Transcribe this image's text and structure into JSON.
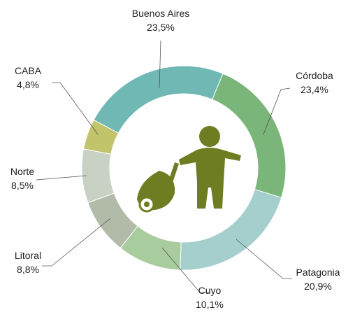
{
  "chart_data": {
    "type": "donut",
    "categories": [
      "Buenos Aires",
      "Córdoba",
      "Patagonia",
      "Cuyo",
      "Litoral",
      "Norte",
      "CABA"
    ],
    "values": [
      23.5,
      23.4,
      20.9,
      10.1,
      8.8,
      8.5,
      4.8
    ],
    "value_labels": [
      "23,5%",
      "23,4%",
      "20,9%",
      "10,1%",
      "8,8%",
      "8,5%",
      "4,8%"
    ],
    "colors": [
      "#6fb8b4",
      "#7ab57a",
      "#a5cfcc",
      "#a8cc9e",
      "#b1bba8",
      "#c9d1c5",
      "#c2c46c"
    ]
  }
}
